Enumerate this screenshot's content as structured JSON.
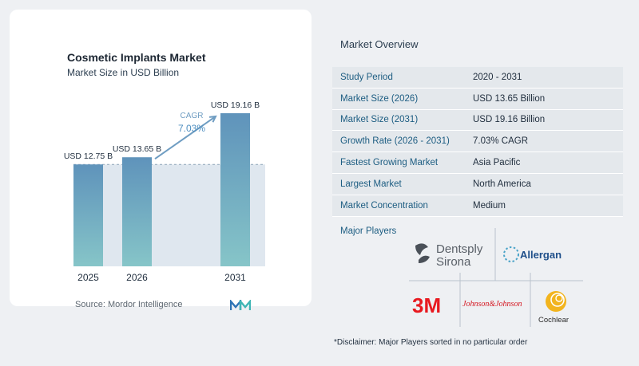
{
  "chart_card": {
    "title": "Cosmetic Implants Market",
    "subtitle": "Market Size in USD Billion",
    "source": "Source:  Mordor Intelligence",
    "cagr_label": "CAGR",
    "cagr_value": "7.03%"
  },
  "chart_data": {
    "type": "bar",
    "title": "Cosmetic Implants Market",
    "subtitle": "Market Size in USD Billion",
    "categories": [
      "2025",
      "2026",
      "2031"
    ],
    "values": [
      12.75,
      13.65,
      19.16
    ],
    "value_labels": [
      "USD 12.75 B",
      "USD 13.65 B",
      "USD 19.16 B"
    ],
    "ylim": [
      0,
      19.16
    ],
    "grid": false,
    "reference_line": 12.75,
    "colors": {
      "bar_top": "#5f93bb",
      "bar_bottom": "#86c5c8",
      "shade": "#dfe7ef"
    }
  },
  "overview": {
    "title": "Market Overview",
    "rows": [
      {
        "label": "Study Period",
        "value": "2020 - 2031"
      },
      {
        "label": "Market Size (2026)",
        "value": "USD 13.65 Billion"
      },
      {
        "label": "Market Size (2031)",
        "value": "USD 19.16 Billion"
      },
      {
        "label": "Growth Rate (2026 - 2031)",
        "value": "7.03% CAGR"
      },
      {
        "label": "Fastest Growing Market",
        "value": "Asia Pacific"
      },
      {
        "label": "Largest Market",
        "value": "North America"
      },
      {
        "label": "Market Concentration",
        "value": "Medium"
      }
    ],
    "players_title": "Major Players",
    "players": {
      "dentsply": [
        "Dentsply",
        "Sirona"
      ],
      "allergan": "Allergan",
      "three_m": "3M",
      "jnj": "Johnson&Johnson",
      "cochlear": "Cochlear"
    },
    "disclaimer": "*Disclaimer: Major Players sorted in no particular order"
  }
}
